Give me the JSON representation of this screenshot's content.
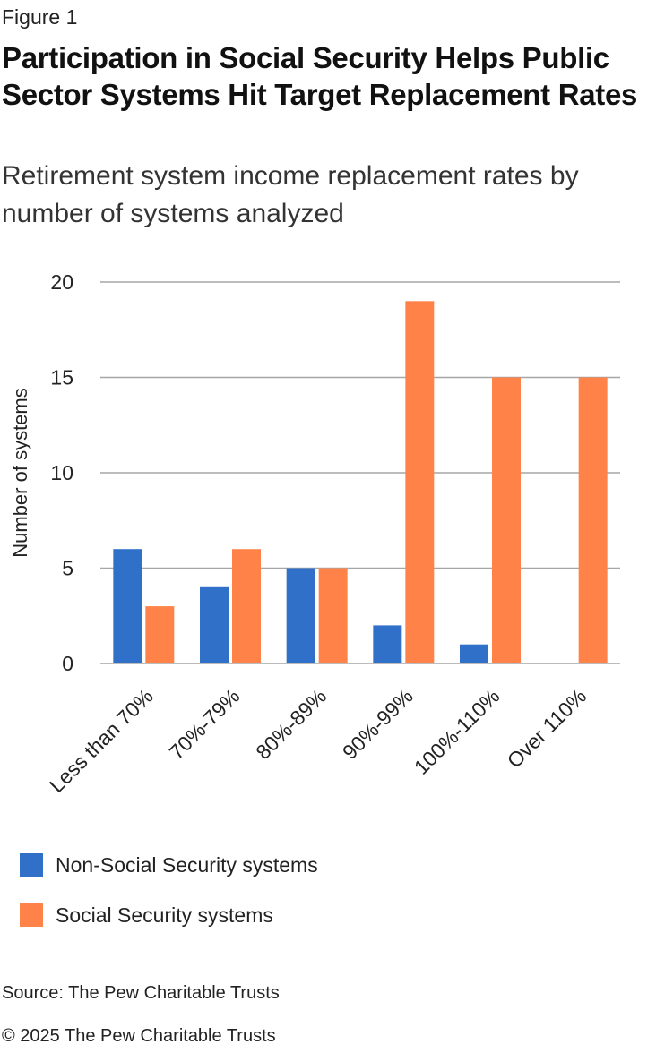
{
  "figure_label": "Figure 1",
  "title": "Participation in Social Security Helps Public Sector Systems Hit Target Replacement Rates",
  "subtitle": "Retirement system income replacement rates by number of systems analyzed",
  "source": "Source: The Pew Charitable Trusts",
  "copyright": "© 2025 The Pew Charitable Trusts",
  "colors": {
    "non_ss": "#3170c8",
    "ss": "#ff8349",
    "grid": "#a6a6a6"
  },
  "chart_data": {
    "type": "bar",
    "title": "Retirement system income replacement rates by number of systems analyzed",
    "xlabel": "",
    "ylabel": "Number of systems",
    "ylim": [
      0,
      20
    ],
    "yticks": [
      0,
      5,
      10,
      15,
      20
    ],
    "grid": true,
    "legend_position": "bottom-left",
    "categories": [
      "Less than 70%",
      "70%-79%",
      "80%-89%",
      "90%-99%",
      "100%-110%",
      "Over 110%"
    ],
    "series": [
      {
        "name": "Non-Social Security systems",
        "values": [
          6,
          4,
          5,
          2,
          1,
          0
        ]
      },
      {
        "name": "Social Security systems",
        "values": [
          3,
          6,
          5,
          19,
          15,
          15
        ]
      }
    ]
  }
}
